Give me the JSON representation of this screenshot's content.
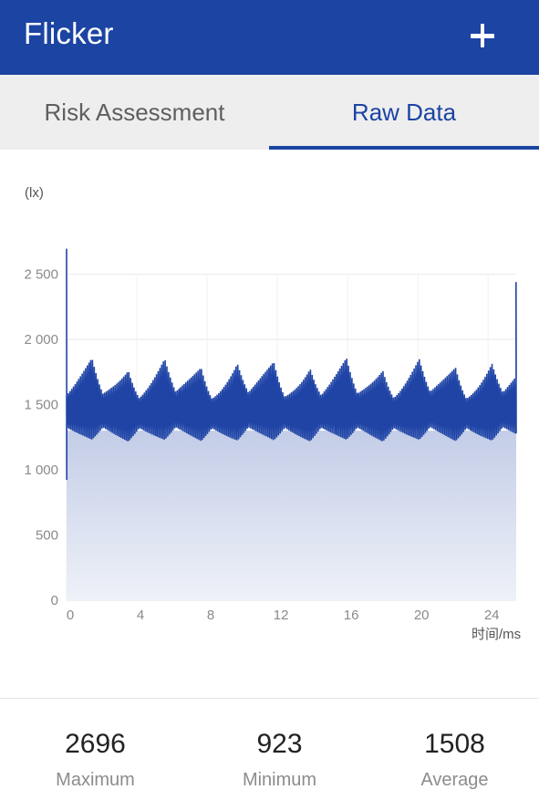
{
  "appbar": {
    "title": "Flicker",
    "add_icon": "plus-icon"
  },
  "tabs": [
    {
      "label": "Risk Assessment",
      "selected": false
    },
    {
      "label": "Raw Data",
      "selected": true
    }
  ],
  "colors": {
    "primary": "#1b44a3",
    "series": "#1f44a6",
    "tab_bg": "#eeeeee"
  },
  "chart_data": {
    "type": "area",
    "ylabel": "(lx)",
    "xlabel": "时间/ms",
    "ylim": [
      0,
      2700
    ],
    "xlim": [
      0,
      25.6
    ],
    "y_ticks": [
      "0",
      "500",
      "1 000",
      "1 500",
      "2 000",
      "2 500"
    ],
    "y_tick_values": [
      0,
      500,
      1000,
      1500,
      2000,
      2500
    ],
    "x_ticks": [
      "0",
      "4",
      "8",
      "12",
      "16",
      "20",
      "24"
    ],
    "x_tick_values": [
      0,
      4,
      8,
      12,
      16,
      20,
      24
    ],
    "grid": true,
    "series": [
      {
        "envelope_period_ms": 2.07,
        "envelope_high": [
          1760,
          1860
        ],
        "envelope_low": [
          1120,
          1280
        ],
        "start_spike": 2696,
        "start_dip": 923,
        "end_spike": 2440,
        "mean": 1508
      }
    ]
  },
  "stats": [
    {
      "value": "2696",
      "label": "Maximum"
    },
    {
      "value": "923",
      "label": "Minimum"
    },
    {
      "value": "1508",
      "label": "Average"
    }
  ]
}
